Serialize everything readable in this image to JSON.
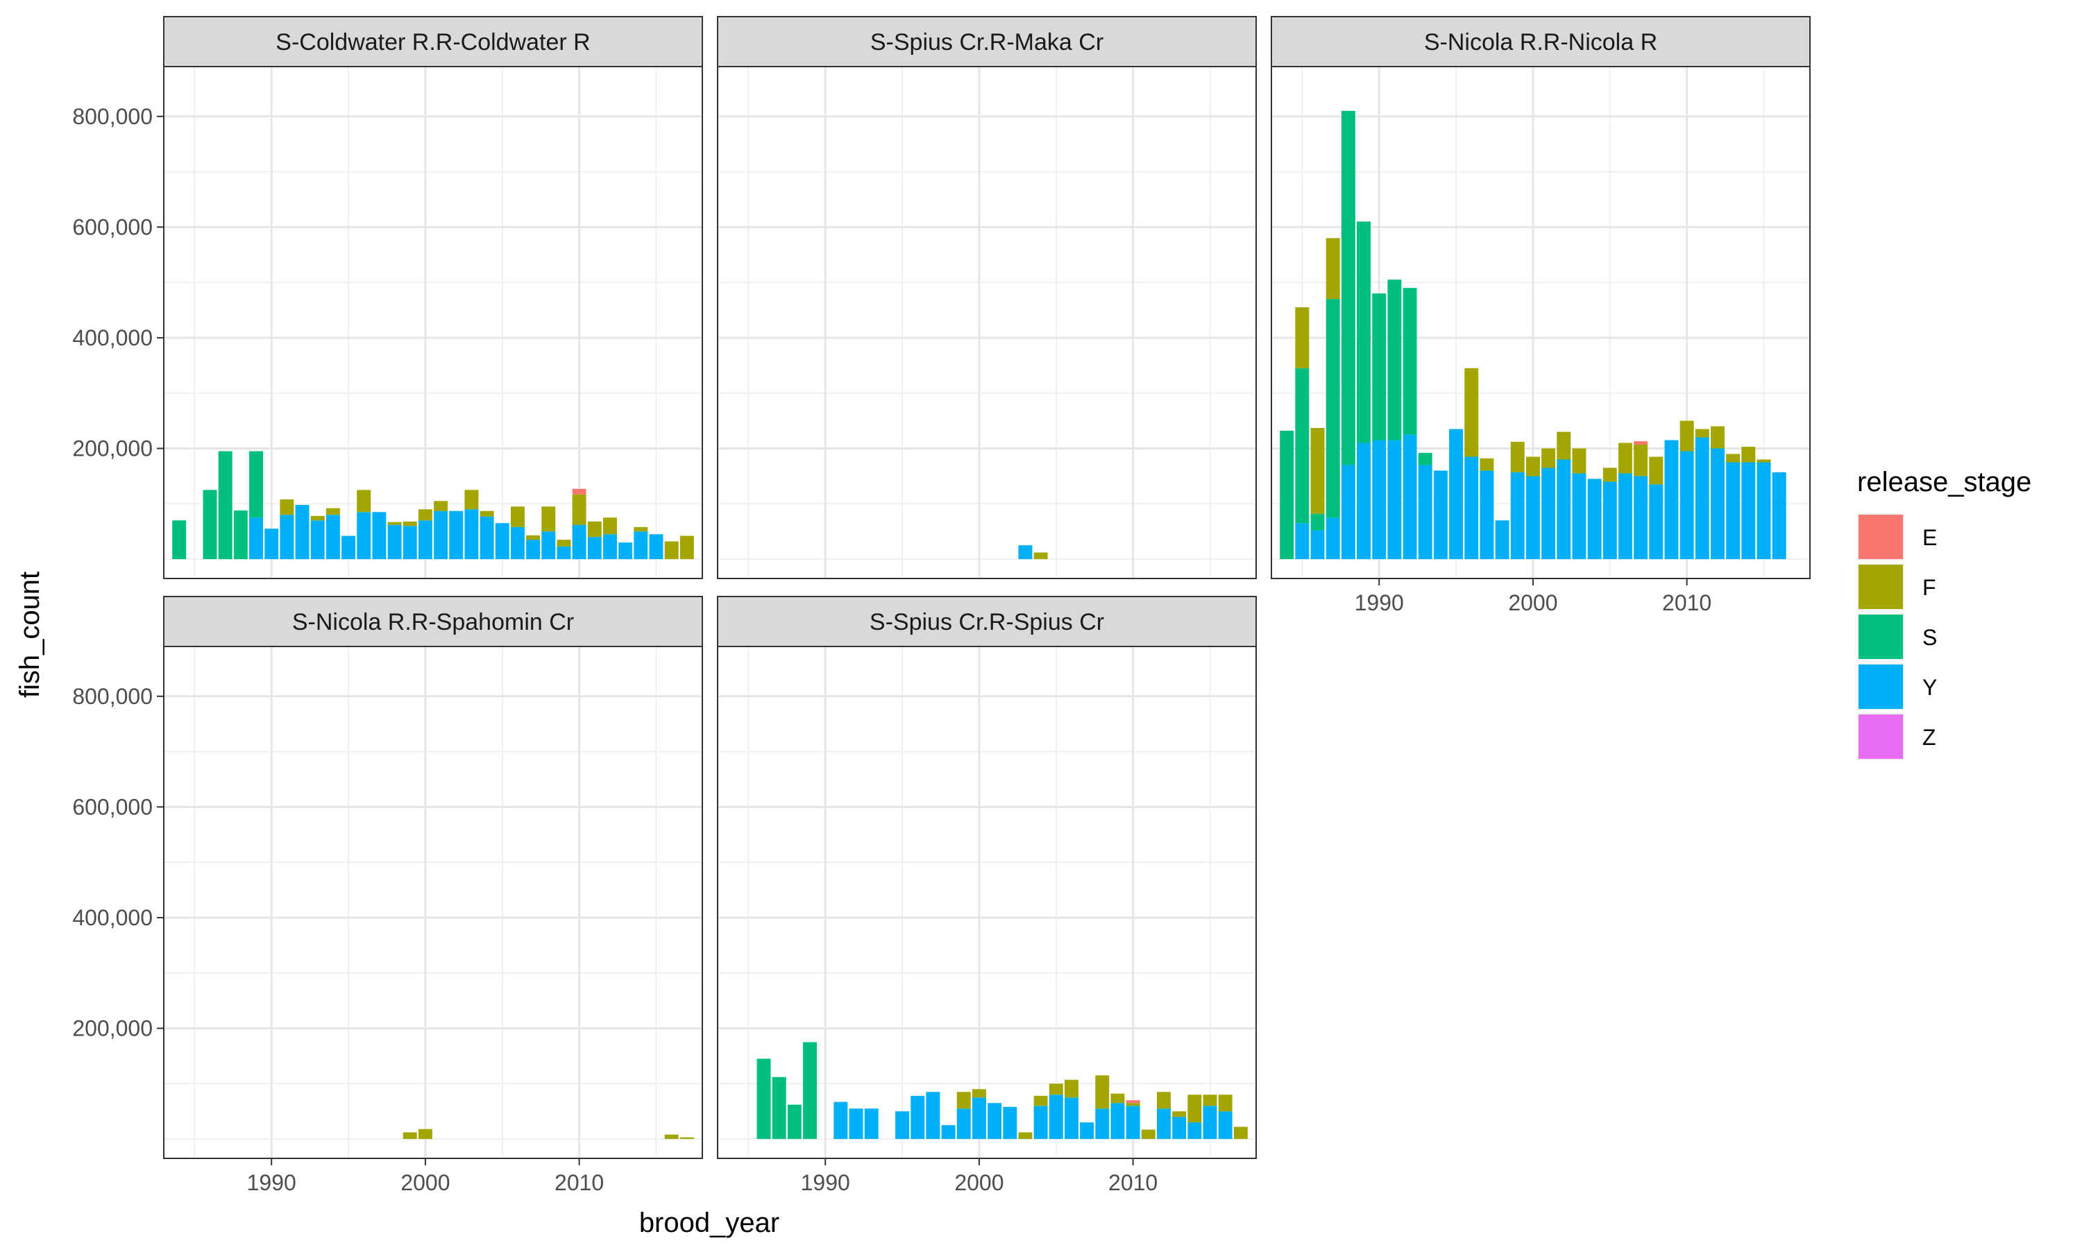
{
  "chart_data": {
    "type": "bar",
    "stacked": true,
    "xlabel": "brood_year",
    "ylabel": "fish_count",
    "x_ticks": [
      1990,
      2000,
      2010
    ],
    "y_ticks": [
      200000,
      400000,
      600000,
      800000
    ],
    "y_tick_labels": [
      "200,000",
      "400,000",
      "600,000",
      "800,000"
    ],
    "xlim": [
      1983,
      2018
    ],
    "ylim": [
      -35000,
      890000
    ],
    "grid": true,
    "legend": {
      "title": "release_stage",
      "placement": "right",
      "entries": [
        {
          "label": "E",
          "color": "#F8766D"
        },
        {
          "label": "F",
          "color": "#A3A500"
        },
        {
          "label": "S",
          "color": "#00BF7D"
        },
        {
          "label": "Y",
          "color": "#00B0F6"
        },
        {
          "label": "Z",
          "color": "#E76BF3"
        }
      ]
    },
    "panels": [
      {
        "title": "S-Coldwater R.R-Coldwater R",
        "bars": [
          {
            "x": 1984,
            "S": 70000
          },
          {
            "x": 1986,
            "S": 125000
          },
          {
            "x": 1987,
            "S": 195000
          },
          {
            "x": 1988,
            "S": 88000
          },
          {
            "x": 1989,
            "S": 120000,
            "Y": 75000
          },
          {
            "x": 1990,
            "Y": 55000
          },
          {
            "x": 1991,
            "Y": 80000,
            "F": 28000
          },
          {
            "x": 1992,
            "Y": 98000
          },
          {
            "x": 1993,
            "Y": 70000,
            "F": 8000
          },
          {
            "x": 1994,
            "Y": 80000,
            "F": 12000
          },
          {
            "x": 1995,
            "Y": 42000
          },
          {
            "x": 1996,
            "Y": 85000,
            "F": 40000
          },
          {
            "x": 1997,
            "Y": 85000
          },
          {
            "x": 1998,
            "Y": 62000,
            "F": 5000
          },
          {
            "x": 1999,
            "Y": 60000,
            "F": 8000
          },
          {
            "x": 2000,
            "Y": 70000,
            "F": 20000
          },
          {
            "x": 2001,
            "Y": 87000,
            "F": 18000
          },
          {
            "x": 2002,
            "Y": 87000
          },
          {
            "x": 2003,
            "Y": 90000,
            "F": 35000
          },
          {
            "x": 2004,
            "Y": 77000,
            "F": 10000
          },
          {
            "x": 2005,
            "Y": 65000
          },
          {
            "x": 2006,
            "Y": 58000,
            "F": 37000
          },
          {
            "x": 2007,
            "Y": 35000,
            "F": 8000
          },
          {
            "x": 2008,
            "Y": 50000,
            "F": 45000
          },
          {
            "x": 2009,
            "Y": 23000,
            "F": 12000
          },
          {
            "x": 2010,
            "Y": 62000,
            "F": 55000,
            "E": 10000
          },
          {
            "x": 2011,
            "Y": 40000,
            "F": 28000
          },
          {
            "x": 2012,
            "Y": 45000,
            "F": 30000
          },
          {
            "x": 2013,
            "Y": 30000
          },
          {
            "x": 2014,
            "Y": 50000,
            "F": 8000
          },
          {
            "x": 2015,
            "Y": 45000
          },
          {
            "x": 2016,
            "F": 32000
          },
          {
            "x": 2017,
            "F": 42000
          }
        ]
      },
      {
        "title": "S-Spius Cr.R-Maka Cr",
        "bars": [
          {
            "x": 2003,
            "Y": 25000
          },
          {
            "x": 2004,
            "F": 12000
          }
        ]
      },
      {
        "title": "S-Nicola R.R-Nicola R",
        "bars": [
          {
            "x": 1984,
            "S": 232000
          },
          {
            "x": 1985,
            "Y": 65000,
            "S": 280000,
            "F": 110000
          },
          {
            "x": 1986,
            "Y": 52000,
            "S": 30000,
            "F": 155000
          },
          {
            "x": 1987,
            "Y": 75000,
            "S": 395000,
            "F": 110000
          },
          {
            "x": 1988,
            "Y": 170000,
            "S": 640000
          },
          {
            "x": 1989,
            "Y": 210000,
            "S": 400000
          },
          {
            "x": 1990,
            "Y": 215000,
            "S": 265000
          },
          {
            "x": 1991,
            "Y": 215000,
            "S": 290000
          },
          {
            "x": 1992,
            "Y": 225000,
            "S": 265000
          },
          {
            "x": 1993,
            "Y": 170000,
            "S": 22000
          },
          {
            "x": 1994,
            "Y": 160000
          },
          {
            "x": 1995,
            "Y": 235000
          },
          {
            "x": 1996,
            "Y": 185000,
            "F": 160000
          },
          {
            "x": 1997,
            "Y": 160000,
            "F": 22000
          },
          {
            "x": 1998,
            "Y": 70000
          },
          {
            "x": 1999,
            "Y": 157000,
            "F": 55000
          },
          {
            "x": 2000,
            "Y": 150000,
            "F": 35000
          },
          {
            "x": 2001,
            "Y": 165000,
            "F": 35000
          },
          {
            "x": 2002,
            "Y": 180000,
            "F": 50000
          },
          {
            "x": 2003,
            "Y": 155000,
            "F": 45000
          },
          {
            "x": 2004,
            "Y": 145000
          },
          {
            "x": 2005,
            "Y": 140000,
            "F": 25000
          },
          {
            "x": 2006,
            "Y": 155000,
            "F": 55000
          },
          {
            "x": 2007,
            "Y": 150000,
            "F": 57000,
            "E": 6000
          },
          {
            "x": 2008,
            "Y": 135000,
            "F": 50000
          },
          {
            "x": 2009,
            "Y": 215000
          },
          {
            "x": 2010,
            "Y": 195000,
            "F": 55000
          },
          {
            "x": 2011,
            "Y": 220000,
            "F": 15000
          },
          {
            "x": 2012,
            "Y": 200000,
            "F": 40000
          },
          {
            "x": 2013,
            "Y": 175000,
            "F": 15000
          },
          {
            "x": 2014,
            "Y": 175000,
            "F": 28000
          },
          {
            "x": 2015,
            "Y": 175000,
            "F": 5000
          },
          {
            "x": 2016,
            "Y": 157000
          }
        ]
      },
      {
        "title": "S-Nicola R.R-Spahomin Cr",
        "bars": [
          {
            "x": 1999,
            "F": 12000
          },
          {
            "x": 2000,
            "F": 18000
          },
          {
            "x": 2016,
            "F": 8000
          },
          {
            "x": 2017,
            "F": 3000
          }
        ]
      },
      {
        "title": "S-Spius Cr.R-Spius Cr",
        "bars": [
          {
            "x": 1986,
            "S": 145000
          },
          {
            "x": 1987,
            "S": 112000
          },
          {
            "x": 1988,
            "S": 62000
          },
          {
            "x": 1989,
            "S": 175000
          },
          {
            "x": 1991,
            "Y": 67000
          },
          {
            "x": 1992,
            "Y": 55000
          },
          {
            "x": 1993,
            "Y": 55000
          },
          {
            "x": 1995,
            "Y": 50000
          },
          {
            "x": 1996,
            "Y": 78000
          },
          {
            "x": 1997,
            "Y": 85000
          },
          {
            "x": 1998,
            "Y": 25000
          },
          {
            "x": 1999,
            "Y": 55000,
            "F": 30000
          },
          {
            "x": 2000,
            "Y": 75000,
            "F": 15000
          },
          {
            "x": 2001,
            "Y": 65000
          },
          {
            "x": 2002,
            "Y": 58000
          },
          {
            "x": 2003,
            "F": 12000
          },
          {
            "x": 2004,
            "Y": 60000,
            "F": 18000
          },
          {
            "x": 2005,
            "Y": 80000,
            "F": 20000
          },
          {
            "x": 2006,
            "Y": 75000,
            "F": 32000
          },
          {
            "x": 2007,
            "Y": 30000
          },
          {
            "x": 2008,
            "Y": 55000,
            "F": 60000
          },
          {
            "x": 2009,
            "Y": 65000,
            "F": 17000
          },
          {
            "x": 2010,
            "Y": 60000,
            "F": 5000,
            "E": 5000
          },
          {
            "x": 2011,
            "F": 17000
          },
          {
            "x": 2012,
            "Y": 55000,
            "F": 30000
          },
          {
            "x": 2013,
            "Y": 40000,
            "F": 10000
          },
          {
            "x": 2014,
            "Y": 30000,
            "F": 50000
          },
          {
            "x": 2015,
            "Y": 60000,
            "F": 20000
          },
          {
            "x": 2016,
            "Y": 50000,
            "F": 30000
          },
          {
            "x": 2017,
            "F": 22000
          }
        ]
      }
    ]
  }
}
